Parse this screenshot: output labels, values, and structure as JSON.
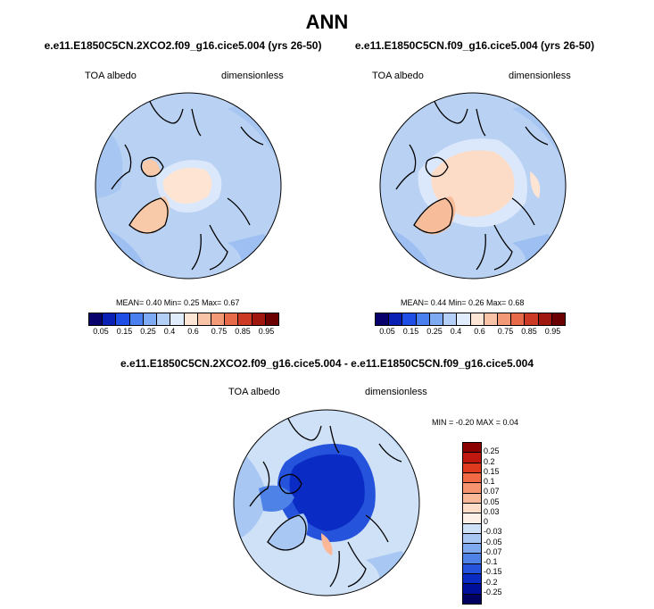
{
  "main_title": "ANN",
  "panels": [
    {
      "run": "e.e11.E1850C5CN.2XCO2.f09_g16.cice5.004 (yrs 26-50)",
      "variable": "TOA albedo",
      "units": "dimensionless",
      "stats": "MEAN=  0.40  Min=  0.25  Max=  0.67"
    },
    {
      "run": "e.e11.E1850C5CN.f09_g16.cice5.004 (yrs 26-50)",
      "variable": "TOA albedo",
      "units": "dimensionless",
      "stats": "MEAN=  0.44  Min=  0.26  Max=  0.68"
    }
  ],
  "abs_colorbar": {
    "colors": [
      "#08006b",
      "#0a1fb4",
      "#1f4ee6",
      "#4a7ff0",
      "#7eaaf3",
      "#b3cff7",
      "#e0ecfb",
      "#fde6d6",
      "#f9c3a8",
      "#f29a78",
      "#e76b4b",
      "#cc3a25",
      "#a01710",
      "#6b0000"
    ],
    "ticks": [
      "0.05",
      "0.15",
      "0.25",
      "0.4",
      "0.6",
      "0.75",
      "0.85",
      "0.95"
    ]
  },
  "diff": {
    "title": "e.e11.E1850C5CN.2XCO2.f09_g16.cice5.004 - e.e11.E1850C5CN.f09_g16.cice5.004",
    "variable": "TOA albedo",
    "units": "dimensionless",
    "stats": "MIN =  -0.20 MAX =   0.04",
    "colorbar": {
      "colors": [
        "#8b0000",
        "#c0170f",
        "#e03a1e",
        "#f26a43",
        "#f79470",
        "#fab898",
        "#fddcc8",
        "#fdf0e6",
        "#cfe1f7",
        "#a8c8f3",
        "#7ea9ee",
        "#4f82e6",
        "#2553dc",
        "#0a2bc4",
        "#000f9a",
        "#000060"
      ],
      "ticks": [
        "0.25",
        "0.2",
        "0.15",
        "0.1",
        "0.07",
        "0.05",
        "0.03",
        "0",
        "-0.03",
        "-0.05",
        "-0.07",
        "-0.1",
        "-0.15",
        "-0.2",
        "-0.25"
      ]
    }
  }
}
